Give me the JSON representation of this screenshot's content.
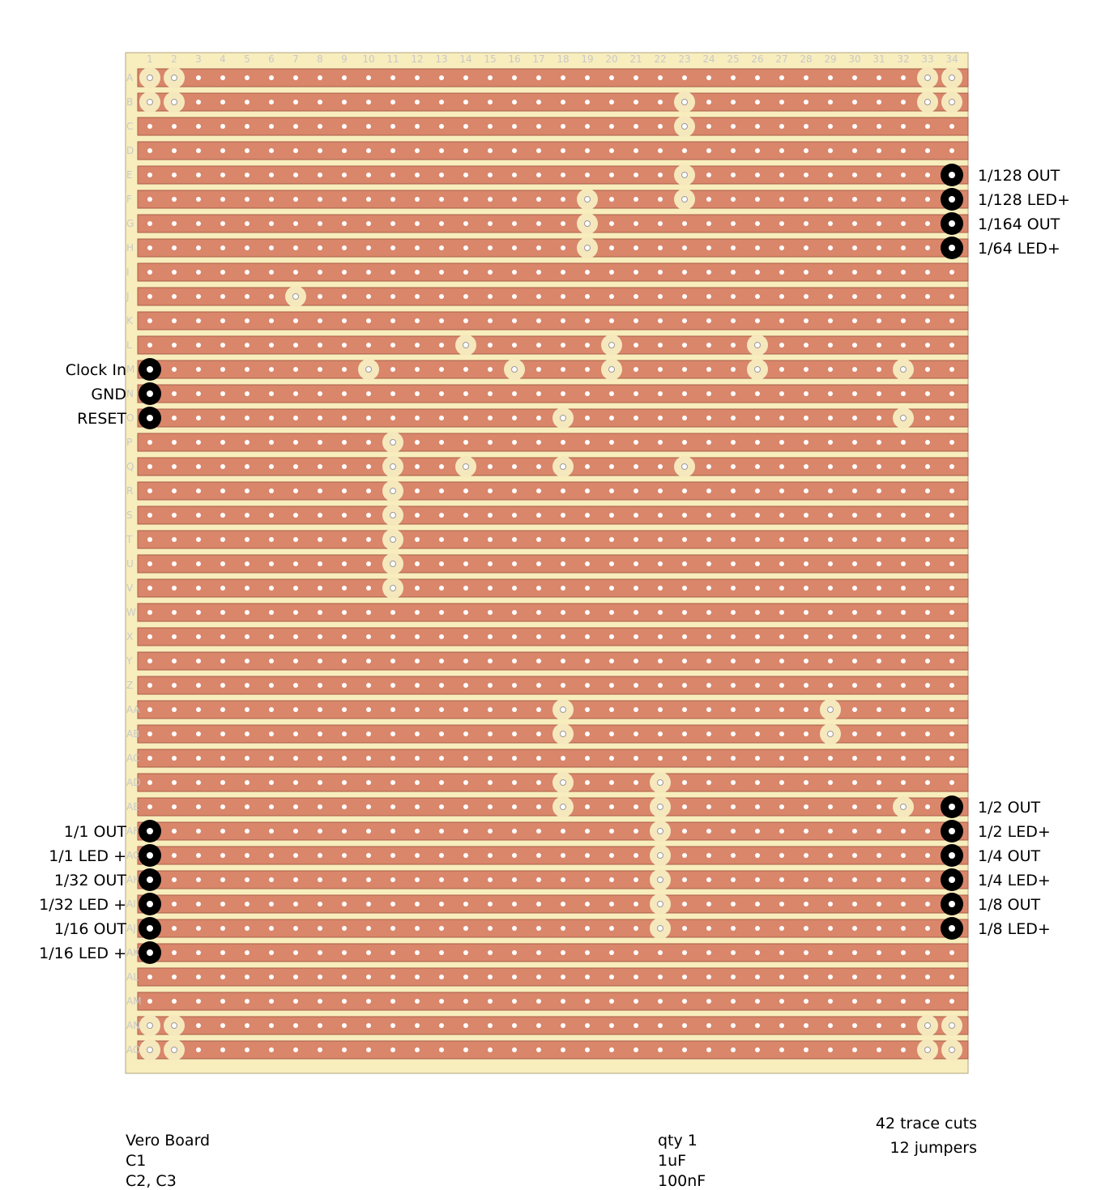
{
  "board": {
    "columns": [
      "1",
      "2",
      "3",
      "4",
      "5",
      "6",
      "7",
      "8",
      "9",
      "10",
      "11",
      "12",
      "13",
      "14",
      "15",
      "16",
      "17",
      "18",
      "19",
      "20",
      "21",
      "22",
      "23",
      "24",
      "25",
      "26",
      "27",
      "28",
      "29",
      "30",
      "31",
      "32",
      "33",
      "34"
    ],
    "rows": [
      "A",
      "B",
      "C",
      "D",
      "E",
      "F",
      "G",
      "H",
      "I",
      "J",
      "K",
      "L",
      "M",
      "N",
      "O",
      "P",
      "Q",
      "R",
      "S",
      "T",
      "U",
      "V",
      "W",
      "X",
      "Y",
      "Z",
      "AA",
      "AB",
      "AC",
      "AD",
      "AE",
      "AF",
      "AG",
      "AH",
      "AI",
      "AJ",
      "AK",
      "AL",
      "AM",
      "AN",
      "AO"
    ],
    "cuts": [
      [
        "A",
        1
      ],
      [
        "A",
        2
      ],
      [
        "A",
        33
      ],
      [
        "A",
        34
      ],
      [
        "B",
        1
      ],
      [
        "B",
        2
      ],
      [
        "B",
        23
      ],
      [
        "B",
        33
      ],
      [
        "B",
        34
      ],
      [
        "C",
        23
      ],
      [
        "E",
        23
      ],
      [
        "F",
        19
      ],
      [
        "F",
        23
      ],
      [
        "G",
        19
      ],
      [
        "H",
        19
      ],
      [
        "J",
        7
      ],
      [
        "L",
        14
      ],
      [
        "L",
        20
      ],
      [
        "L",
        26
      ],
      [
        "M",
        10
      ],
      [
        "M",
        16
      ],
      [
        "M",
        20
      ],
      [
        "M",
        26
      ],
      [
        "M",
        32
      ],
      [
        "O",
        18
      ],
      [
        "O",
        32
      ],
      [
        "P",
        11
      ],
      [
        "Q",
        11
      ],
      [
        "Q",
        14
      ],
      [
        "Q",
        18
      ],
      [
        "Q",
        23
      ],
      [
        "R",
        11
      ],
      [
        "S",
        11
      ],
      [
        "T",
        11
      ],
      [
        "U",
        11
      ],
      [
        "V",
        11
      ],
      [
        "AA",
        18
      ],
      [
        "AA",
        29
      ],
      [
        "AB",
        18
      ],
      [
        "AB",
        29
      ],
      [
        "AD",
        18
      ],
      [
        "AD",
        22
      ],
      [
        "AE",
        18
      ],
      [
        "AE",
        22
      ],
      [
        "AE",
        32
      ],
      [
        "AF",
        22
      ],
      [
        "AG",
        22
      ],
      [
        "AH",
        22
      ],
      [
        "AI",
        22
      ],
      [
        "AJ",
        22
      ],
      [
        "AN",
        1
      ],
      [
        "AN",
        2
      ],
      [
        "AN",
        33
      ],
      [
        "AN",
        34
      ],
      [
        "AO",
        1
      ],
      [
        "AO",
        2
      ],
      [
        "AO",
        33
      ],
      [
        "AO",
        34
      ]
    ],
    "pins": [
      [
        "E",
        34
      ],
      [
        "F",
        34
      ],
      [
        "G",
        34
      ],
      [
        "H",
        34
      ],
      [
        "M",
        1
      ],
      [
        "N",
        1
      ],
      [
        "O",
        1
      ],
      [
        "AE",
        34
      ],
      [
        "AF",
        34
      ],
      [
        "AG",
        34
      ],
      [
        "AH",
        34
      ],
      [
        "AI",
        34
      ],
      [
        "AJ",
        34
      ],
      [
        "AF",
        1
      ],
      [
        "AG",
        1
      ],
      [
        "AH",
        1
      ],
      [
        "AI",
        1
      ],
      [
        "AJ",
        1
      ],
      [
        "AK",
        1
      ]
    ]
  },
  "labels": {
    "right": [
      {
        "row": "E",
        "text": "1/128 OUT"
      },
      {
        "row": "F",
        "text": "1/128 LED+"
      },
      {
        "row": "G",
        "text": "1/164 OUT"
      },
      {
        "row": "H",
        "text": "1/64 LED+"
      },
      {
        "row": "AE",
        "text": "1/2 OUT"
      },
      {
        "row": "AF",
        "text": "1/2 LED+"
      },
      {
        "row": "AG",
        "text": "1/4 OUT"
      },
      {
        "row": "AH",
        "text": "1/4 LED+"
      },
      {
        "row": "AI",
        "text": "1/8 OUT"
      },
      {
        "row": "AJ",
        "text": "1/8 LED+"
      }
    ],
    "left": [
      {
        "row": "M",
        "text": "Clock In"
      },
      {
        "row": "N",
        "text": "GND"
      },
      {
        "row": "O",
        "text": "RESET"
      },
      {
        "row": "AF",
        "text": "1/1 OUT"
      },
      {
        "row": "AG",
        "text": "1/1 LED +"
      },
      {
        "row": "AH",
        "text": "1/32 OUT"
      },
      {
        "row": "AI",
        "text": "1/32 LED +"
      },
      {
        "row": "AJ",
        "text": "1/16 OUT"
      },
      {
        "row": "AK",
        "text": "1/16 LED +"
      }
    ]
  },
  "stats": {
    "trace_cuts": "42 trace cuts",
    "jumpers": "12 jumpers"
  },
  "bom": [
    {
      "part": "Vero Board",
      "value": "qty 1"
    },
    {
      "part": "C1",
      "value": "1uF"
    },
    {
      "part": "C2, C3",
      "value": "100nF"
    }
  ],
  "colors": {
    "board": "#f8edbd",
    "board_border": "#b0a680",
    "strip": "#d9866b",
    "strip_border": "#a85e48",
    "hole": "#ffffff",
    "cut": "#f6e8bd",
    "pin": "#000000",
    "grid_label": "#c8c8c8"
  }
}
